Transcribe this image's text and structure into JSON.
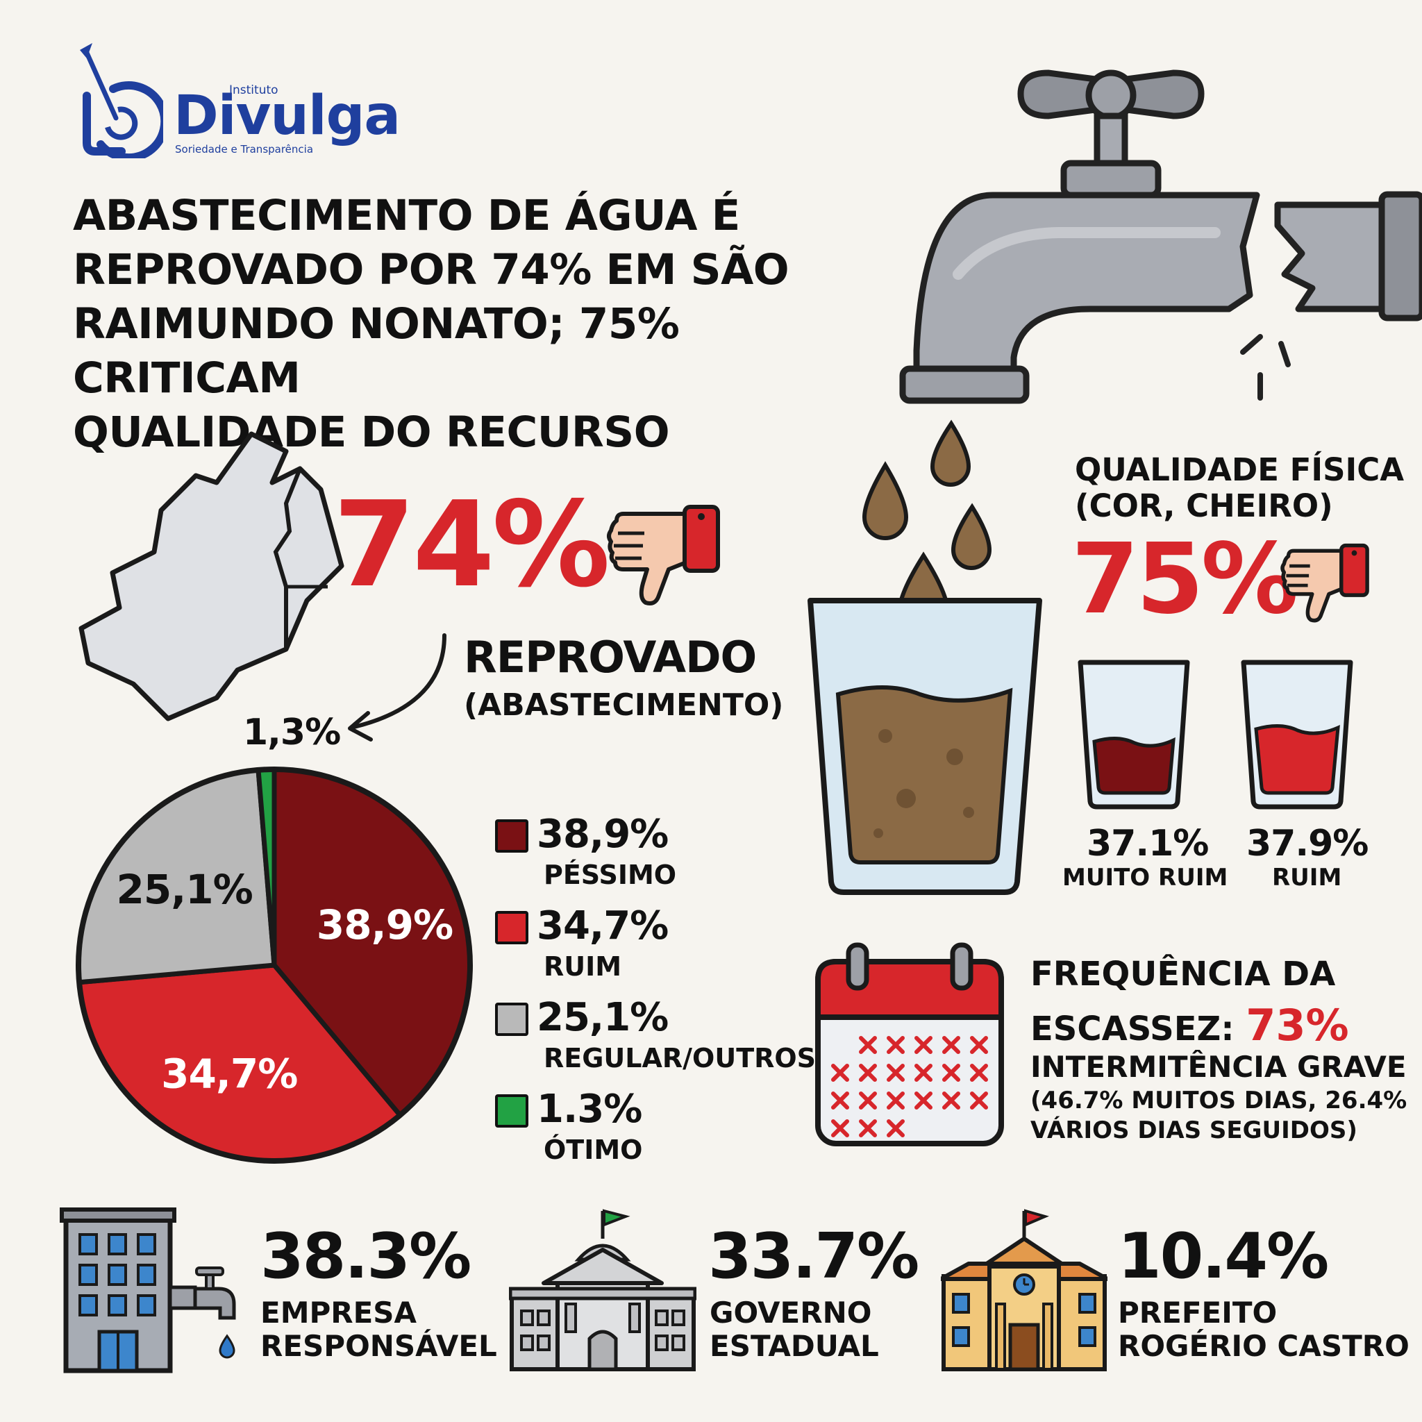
{
  "logo": {
    "small_top": "Instituto",
    "word": "Divulga",
    "tagline": "Soriedade e Transparência"
  },
  "headline": [
    "ABASTECIMENTO DE ÁGUA É",
    "REPROVADO POR 74% EM SÃO",
    "RAIMUNDO NONATO; 75% CRITICAM",
    "QUALIDADE DO RECURSO"
  ],
  "reprovado": {
    "value": "74%",
    "label": "REPROVADO",
    "sublabel": "(ABASTECIMENTO)",
    "callout": "1,3%"
  },
  "qualidade": {
    "title_line1": "QUALIDADE FÍSICA",
    "title_line2": "(COR, CHEIRO)",
    "value": "75%",
    "items": [
      {
        "value": "37.1%",
        "label": "MUITO RUIM"
      },
      {
        "value": "37.9%",
        "label": "RUIM"
      }
    ]
  },
  "escassez": {
    "line1": "FREQUÊNCIA DA",
    "line2": "ESCASSEZ: ",
    "value": "73%",
    "line3": "INTERMITÊNCIA GRAVE",
    "line4": "(46.7% MUITOS DIAS, 26.4%",
    "line5": "VÁRIOS DIAS SEGUIDOS)"
  },
  "responsaveis": [
    {
      "value": "38.3%",
      "label1": "EMPRESA",
      "label2": "RESPONSÁVEL"
    },
    {
      "value": "33.7%",
      "label1": "GOVERNO",
      "label2": "ESTADUAL"
    },
    {
      "value": "10.4%",
      "label1": "PREFEITO",
      "label2": "ROGÉRIO CASTRO"
    }
  ],
  "colors": {
    "dark_red": "#7a1114",
    "red": "#d7262b",
    "gray": "#b9b9b9",
    "green": "#22a244",
    "blue": "#1f3f9e"
  },
  "chart_data": {
    "type": "pie",
    "slices": [
      {
        "label": "PÉSSIMO",
        "value": 38.9,
        "display": "38,9%",
        "color": "#7a1114"
      },
      {
        "label": "RUIM",
        "value": 34.7,
        "display": "34,7%",
        "color": "#d7262b"
      },
      {
        "label": "REGULAR/OUTROS",
        "value": 25.1,
        "display": "25,1%",
        "color": "#b9b9b9"
      },
      {
        "label": "ÓTIMO",
        "value": 1.3,
        "display": "1.3%",
        "color": "#22a244"
      }
    ],
    "legend_position": "right"
  }
}
